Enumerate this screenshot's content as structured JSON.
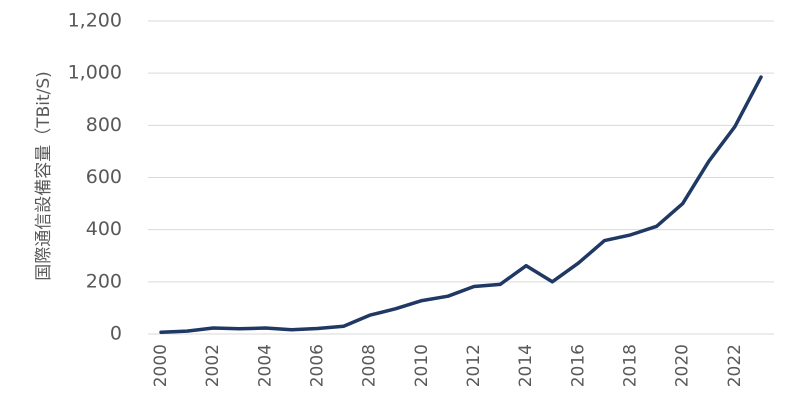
{
  "chart_data": {
    "type": "line",
    "title": "",
    "xlabel": "",
    "ylabel": "国際通信設備容量（TBit/S)",
    "x": [
      2000,
      2001,
      2002,
      2003,
      2004,
      2005,
      2006,
      2007,
      2008,
      2009,
      2010,
      2011,
      2012,
      2013,
      2014,
      2015,
      2016,
      2017,
      2018,
      2019,
      2020,
      2021,
      2022,
      2023
    ],
    "series": [
      {
        "name": "",
        "color": "#1f3864",
        "values": [
          7,
          11,
          23,
          20,
          23,
          16,
          21,
          30,
          72,
          97,
          128,
          145,
          182,
          190,
          262,
          200,
          272,
          358,
          380,
          413,
          500,
          662,
          795,
          985
        ]
      }
    ],
    "ylim": [
      0,
      1200
    ],
    "yticks": [
      0,
      200,
      400,
      600,
      800,
      1000,
      1200
    ],
    "ytick_labels": [
      "0",
      "200",
      "400",
      "600",
      "800",
      "1,000",
      "1,200"
    ],
    "xticks": [
      2000,
      2002,
      2004,
      2006,
      2008,
      2010,
      2012,
      2014,
      2016,
      2018,
      2020,
      2022
    ],
    "xtick_labels": [
      "2000",
      "2002",
      "2004",
      "2006",
      "2008",
      "2010",
      "2012",
      "2014",
      "2016",
      "2018",
      "2020",
      "2022"
    ],
    "grid": true,
    "legend": "none"
  }
}
